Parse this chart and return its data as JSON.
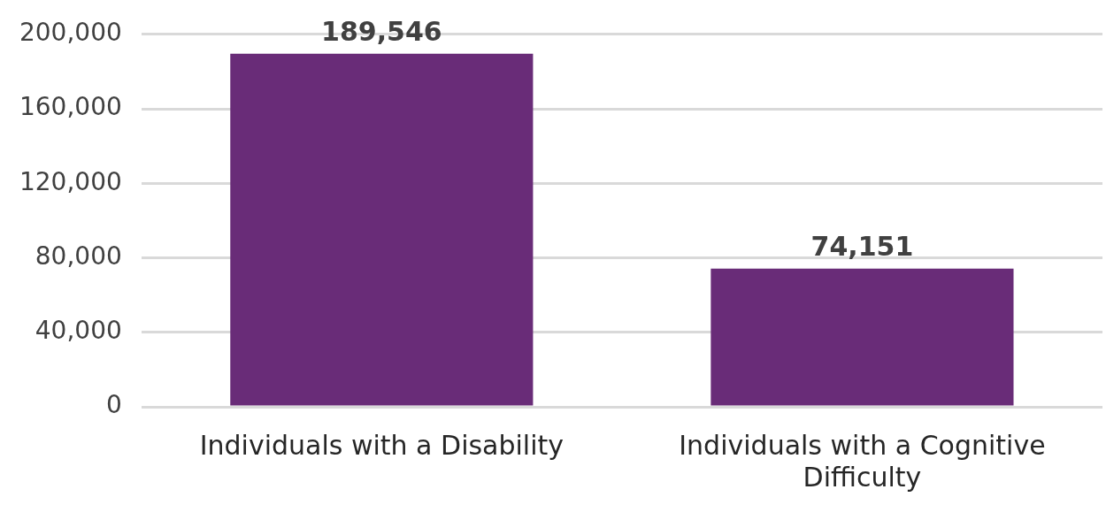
{
  "chart_data": {
    "type": "bar",
    "categories": [
      "Individuals with a Disability",
      "Individuals with a Cognitive Difficulty"
    ],
    "values": [
      189546,
      74151
    ],
    "value_labels": [
      "189,546",
      "74,151"
    ],
    "color": "#692c78",
    "ylim": [
      0,
      200000
    ],
    "yticks": [
      {
        "value": 0,
        "label": "0"
      },
      {
        "value": 40000,
        "label": "40,000"
      },
      {
        "value": 80000,
        "label": "80,000"
      },
      {
        "value": 120000,
        "label": "120,000"
      },
      {
        "value": 160000,
        "label": "160,000"
      },
      {
        "value": 200000,
        "label": "200,000"
      }
    ],
    "grid": "y",
    "legend": false
  }
}
